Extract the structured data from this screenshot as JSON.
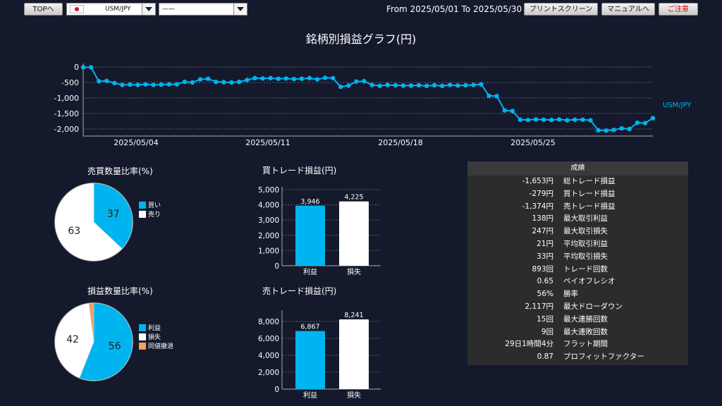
{
  "topbar": {
    "top_button": "TOPへ",
    "symbol_select": "USM/JPY",
    "second_select": "——",
    "date_range": "From 2025/05/01 To 2025/05/30",
    "print_button": "プリントスクリーン",
    "manual_button": "マニュアルへ",
    "close_button": "ご注意"
  },
  "main_chart": {
    "title": "銘柄別損益グラフ(円)",
    "series_label": "USM/JPY",
    "y_ticks": [
      "0",
      "-500",
      "-1,000",
      "-1,500",
      "-2,000"
    ],
    "x_ticks": [
      "2025/05/04",
      "2025/05/11",
      "2025/05/18",
      "2025/05/25"
    ]
  },
  "chart_data": [
    {
      "type": "line",
      "title": "銘柄別損益グラフ(円)",
      "series": [
        {
          "name": "USM/JPY",
          "values": [
            -10,
            -10,
            -460,
            -450,
            -520,
            -580,
            -570,
            -580,
            -560,
            -580,
            -570,
            -560,
            -560,
            -480,
            -500,
            -400,
            -380,
            -480,
            -490,
            -500,
            -480,
            -420,
            -360,
            -370,
            -360,
            -380,
            -370,
            -390,
            -380,
            -360,
            -400,
            -350,
            -360,
            -640,
            -600,
            -470,
            -460,
            -580,
            -610,
            -580,
            -590,
            -600,
            -600,
            -590,
            -610,
            -590,
            -610,
            -580,
            -600,
            -590,
            -580,
            -560,
            -930,
            -940,
            -1400,
            -1420,
            -1700,
            -1710,
            -1690,
            -1700,
            -1710,
            -1690,
            -1720,
            -1700,
            -1700,
            -1720,
            -2040,
            -2050,
            -2030,
            -1980,
            -2000,
            -1800,
            -1810,
            -1650
          ]
        }
      ],
      "ylim": [
        -2200,
        100
      ],
      "x_range": [
        "2025/05/01",
        "2025/05/30"
      ]
    },
    {
      "type": "pie",
      "title": "売買数量比率(%)",
      "labels": [
        "買い",
        "売り"
      ],
      "values": [
        37,
        63
      ]
    },
    {
      "type": "pie",
      "title": "損益数量比率(%)",
      "labels": [
        "利益",
        "損失",
        "同値撤退"
      ],
      "values": [
        56,
        42,
        2
      ]
    },
    {
      "type": "bar",
      "title": "買トレード損益(円)",
      "categories": [
        "利益",
        "損失"
      ],
      "values": [
        3946,
        4225
      ],
      "ylim": [
        0,
        5000
      ],
      "y_ticks": [
        "0",
        "1,000",
        "2,000",
        "3,000",
        "4,000",
        "5,000"
      ],
      "value_labels": [
        "3,946",
        "4,225"
      ]
    },
    {
      "type": "bar",
      "title": "売トレード損益(円)",
      "categories": [
        "利益",
        "損失"
      ],
      "values": [
        6867,
        8241
      ],
      "ylim": [
        0,
        9000
      ],
      "y_ticks": [
        "0",
        "2,000",
        "4,000",
        "6,000",
        "8,000"
      ],
      "value_labels": [
        "6,867",
        "8,241"
      ]
    }
  ],
  "colors": {
    "accent": "#00b4f0",
    "white": "#ffffff",
    "same": "#f0a060",
    "bg": "#141a2c"
  },
  "stats": {
    "header": "成績",
    "rows": [
      {
        "value": "-1,653円",
        "label": "総トレード損益"
      },
      {
        "value": "-279円",
        "label": "買トレード損益"
      },
      {
        "value": "-1,374円",
        "label": "売トレード損益"
      },
      {
        "value": "138円",
        "label": "最大取引利益"
      },
      {
        "value": "247円",
        "label": "最大取引損失"
      },
      {
        "value": "21円",
        "label": "平均取引利益"
      },
      {
        "value": "33円",
        "label": "平均取引損失"
      },
      {
        "value": "893回",
        "label": "トレード回数"
      },
      {
        "value": "0.65",
        "label": "ペイオフレシオ"
      },
      {
        "value": "56%",
        "label": "勝率"
      },
      {
        "value": "2,117円",
        "label": "最大ドローダウン"
      },
      {
        "value": "15回",
        "label": "最大連勝回数"
      },
      {
        "value": "9回",
        "label": "最大連敗回数"
      },
      {
        "value": "29日1時間4分",
        "label": "フラット期間"
      },
      {
        "value": "0.87",
        "label": "プロフィットファクター"
      }
    ]
  }
}
